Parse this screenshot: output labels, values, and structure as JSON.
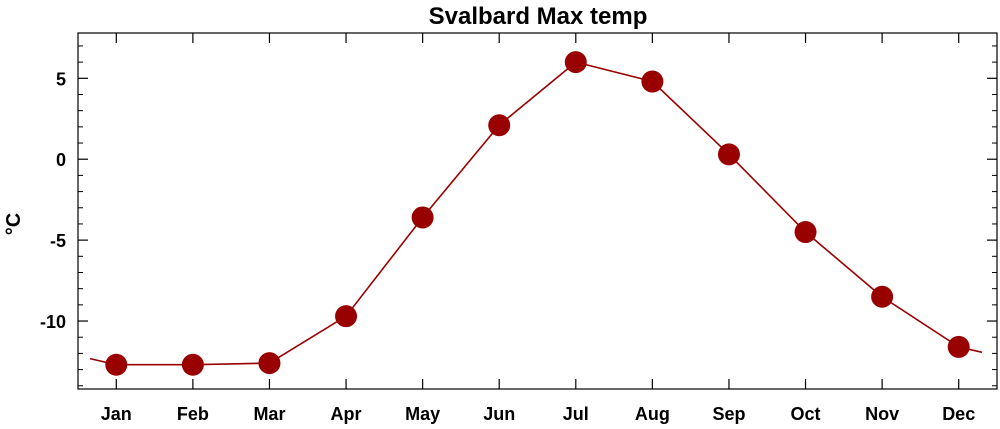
{
  "chart_data": {
    "type": "line",
    "title": "Svalbard Max temp",
    "xlabel": "",
    "ylabel": "°C",
    "categories": [
      "Jan",
      "Feb",
      "Mar",
      "Apr",
      "May",
      "Jun",
      "Jul",
      "Aug",
      "Sep",
      "Oct",
      "Nov",
      "Dec"
    ],
    "series": [
      {
        "values": [
          -12.7,
          -12.7,
          -12.6,
          -9.7,
          -3.6,
          2.1,
          6.0,
          4.8,
          0.3,
          -4.5,
          -8.5,
          -11.6
        ]
      }
    ],
    "ylim": [
      -14.2,
      7.8
    ],
    "yticks": [
      5,
      0,
      -5,
      -10
    ],
    "ytick_labels": [
      "5",
      "0",
      "-5",
      "-10"
    ],
    "grid": false,
    "series_color": "#990000"
  }
}
